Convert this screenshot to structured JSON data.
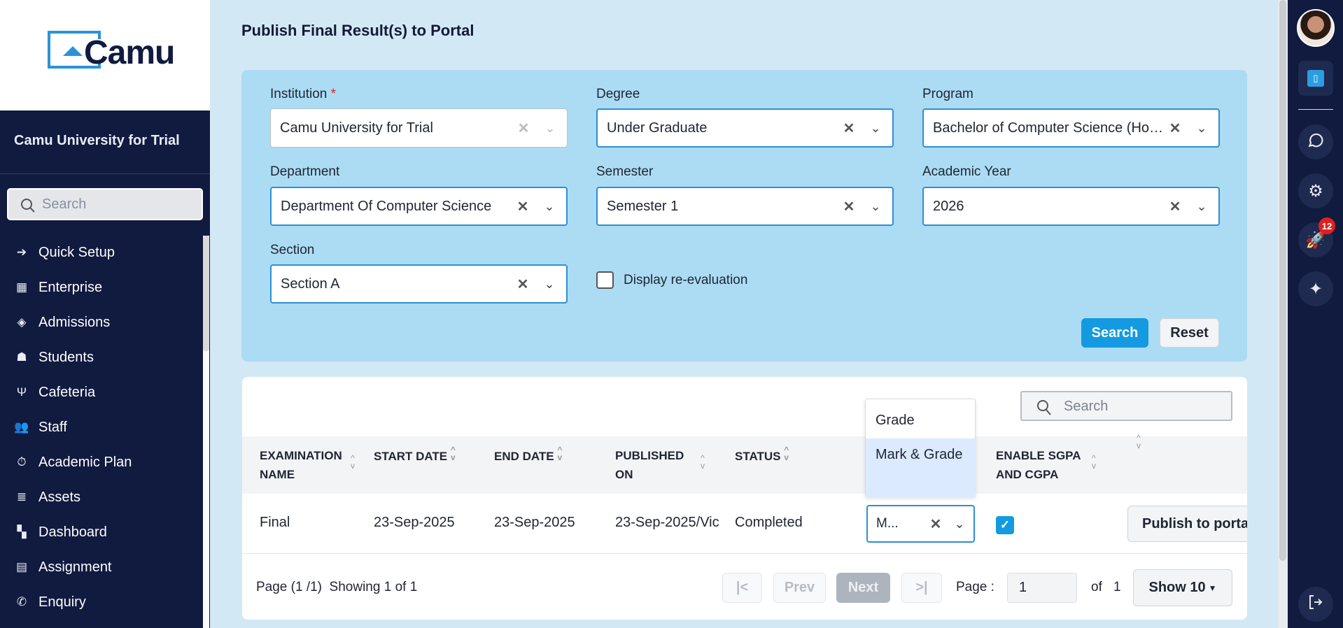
{
  "brand": {
    "logo_text": "Camu",
    "org_name": "Camu University for Trial"
  },
  "sidebar": {
    "search_placeholder": "Search",
    "items": [
      {
        "label": "Quick Setup",
        "icon": "sign-in-icon"
      },
      {
        "label": "Enterprise",
        "icon": "building-icon"
      },
      {
        "label": "Admissions",
        "icon": "ticket-icon"
      },
      {
        "label": "Students",
        "icon": "students-icon"
      },
      {
        "label": "Cafeteria",
        "icon": "utensils-icon"
      },
      {
        "label": "Staff",
        "icon": "users-icon"
      },
      {
        "label": "Academic Plan",
        "icon": "stopwatch-icon"
      },
      {
        "label": "Assets",
        "icon": "database-icon"
      },
      {
        "label": "Dashboard",
        "icon": "dashboard-icon"
      },
      {
        "label": "Assignment",
        "icon": "document-icon"
      },
      {
        "label": "Enquiry",
        "icon": "phone-icon"
      }
    ]
  },
  "page": {
    "title": "Publish Final Result(s) to Portal"
  },
  "filters": {
    "institution": {
      "label": "Institution",
      "required": "*",
      "value": "Camu University for Trial"
    },
    "degree": {
      "label": "Degree",
      "value": "Under Graduate"
    },
    "program": {
      "label": "Program",
      "value": "Bachelor of Computer Science (Hons)"
    },
    "department": {
      "label": "Department",
      "value": "Department Of Computer Science"
    },
    "semester": {
      "label": "Semester",
      "value": "Semester 1"
    },
    "academic_year": {
      "label": "Academic Year",
      "value": "2026"
    },
    "section": {
      "label": "Section",
      "value": "Section A"
    },
    "reevaluation": {
      "label": "Display re-evaluation",
      "checked": false
    },
    "search_label": "Search",
    "reset_label": "Reset"
  },
  "table": {
    "search_placeholder": "Search",
    "columns": [
      "EXAMINATION NAME",
      "START DATE",
      "END DATE",
      "PUBLISHED ON",
      "STATUS",
      "",
      "ENABLE SGPA AND CGPA",
      ""
    ],
    "rows": [
      {
        "exam": "Final",
        "start": "23-Sep-2025",
        "end": "23-Sep-2025",
        "published": "23-Sep-2025/Vic",
        "status": "Completed",
        "result_type": "M...",
        "sgpa_enabled": true,
        "action": "Publish to portal"
      }
    ],
    "dropdown_options": [
      "Grade",
      "Mark & Grade"
    ],
    "dropdown_highlighted": "Mark & Grade"
  },
  "pagination": {
    "summary": "Page (1 /1)  Showing 1 of 1",
    "first": "|<",
    "prev": "Prev",
    "next": "Next",
    "last": ">|",
    "page_label": "Page :",
    "page_value": "1",
    "of_label": "of",
    "total_pages": "1",
    "show_label": "Show 10"
  },
  "rail": {
    "notification_count": "12"
  },
  "colors": {
    "sidebar": "#111a3f",
    "accent": "#139ae0",
    "filter_panel": "#acdcf3",
    "badge": "#e02020"
  }
}
